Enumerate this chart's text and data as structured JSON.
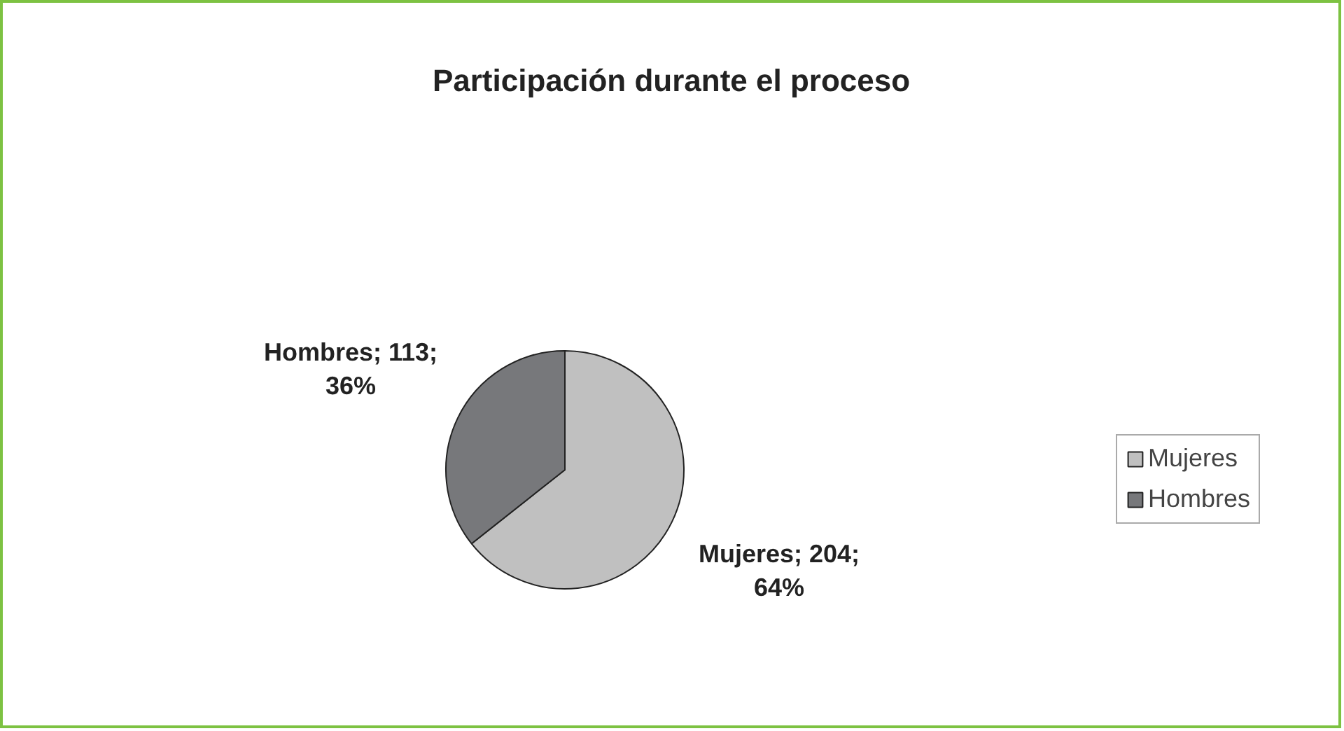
{
  "chart_data": {
    "type": "pie",
    "title": "Participación durante el proceso",
    "categories": [
      "Mujeres",
      "Hombres"
    ],
    "values": [
      204,
      113
    ],
    "colors": [
      "#c0c0c0",
      "#77787b"
    ],
    "value_labels": [
      "Mujeres; 204; 64%",
      "Hombres; 113; 36%"
    ],
    "legend": "right"
  }
}
